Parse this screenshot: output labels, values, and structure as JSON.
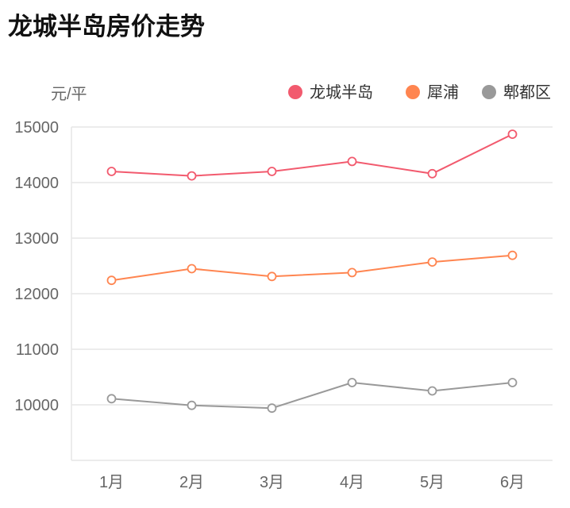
{
  "title": "龙城半岛房价走势",
  "chart_data": {
    "type": "line",
    "title": "龙城半岛房价走势",
    "ylabel": "元/平",
    "categories": [
      "1月",
      "2月",
      "3月",
      "4月",
      "5月",
      "6月"
    ],
    "ylim": [
      9000,
      15000
    ],
    "yticks": [
      "10000",
      "11000",
      "12000",
      "13000",
      "14000",
      "15000"
    ],
    "grid": true,
    "legend": "top-right",
    "series": [
      {
        "name": "龙城半岛",
        "color": "#f25a6e",
        "values": [
          14200,
          14120,
          14200,
          14380,
          14160,
          14870
        ]
      },
      {
        "name": "犀浦",
        "color": "#ff8550",
        "values": [
          12240,
          12450,
          12310,
          12380,
          12570,
          12690
        ]
      },
      {
        "name": "郫都区",
        "color": "#999999",
        "values": [
          10110,
          9990,
          9940,
          10400,
          10250,
          10400
        ]
      }
    ]
  }
}
